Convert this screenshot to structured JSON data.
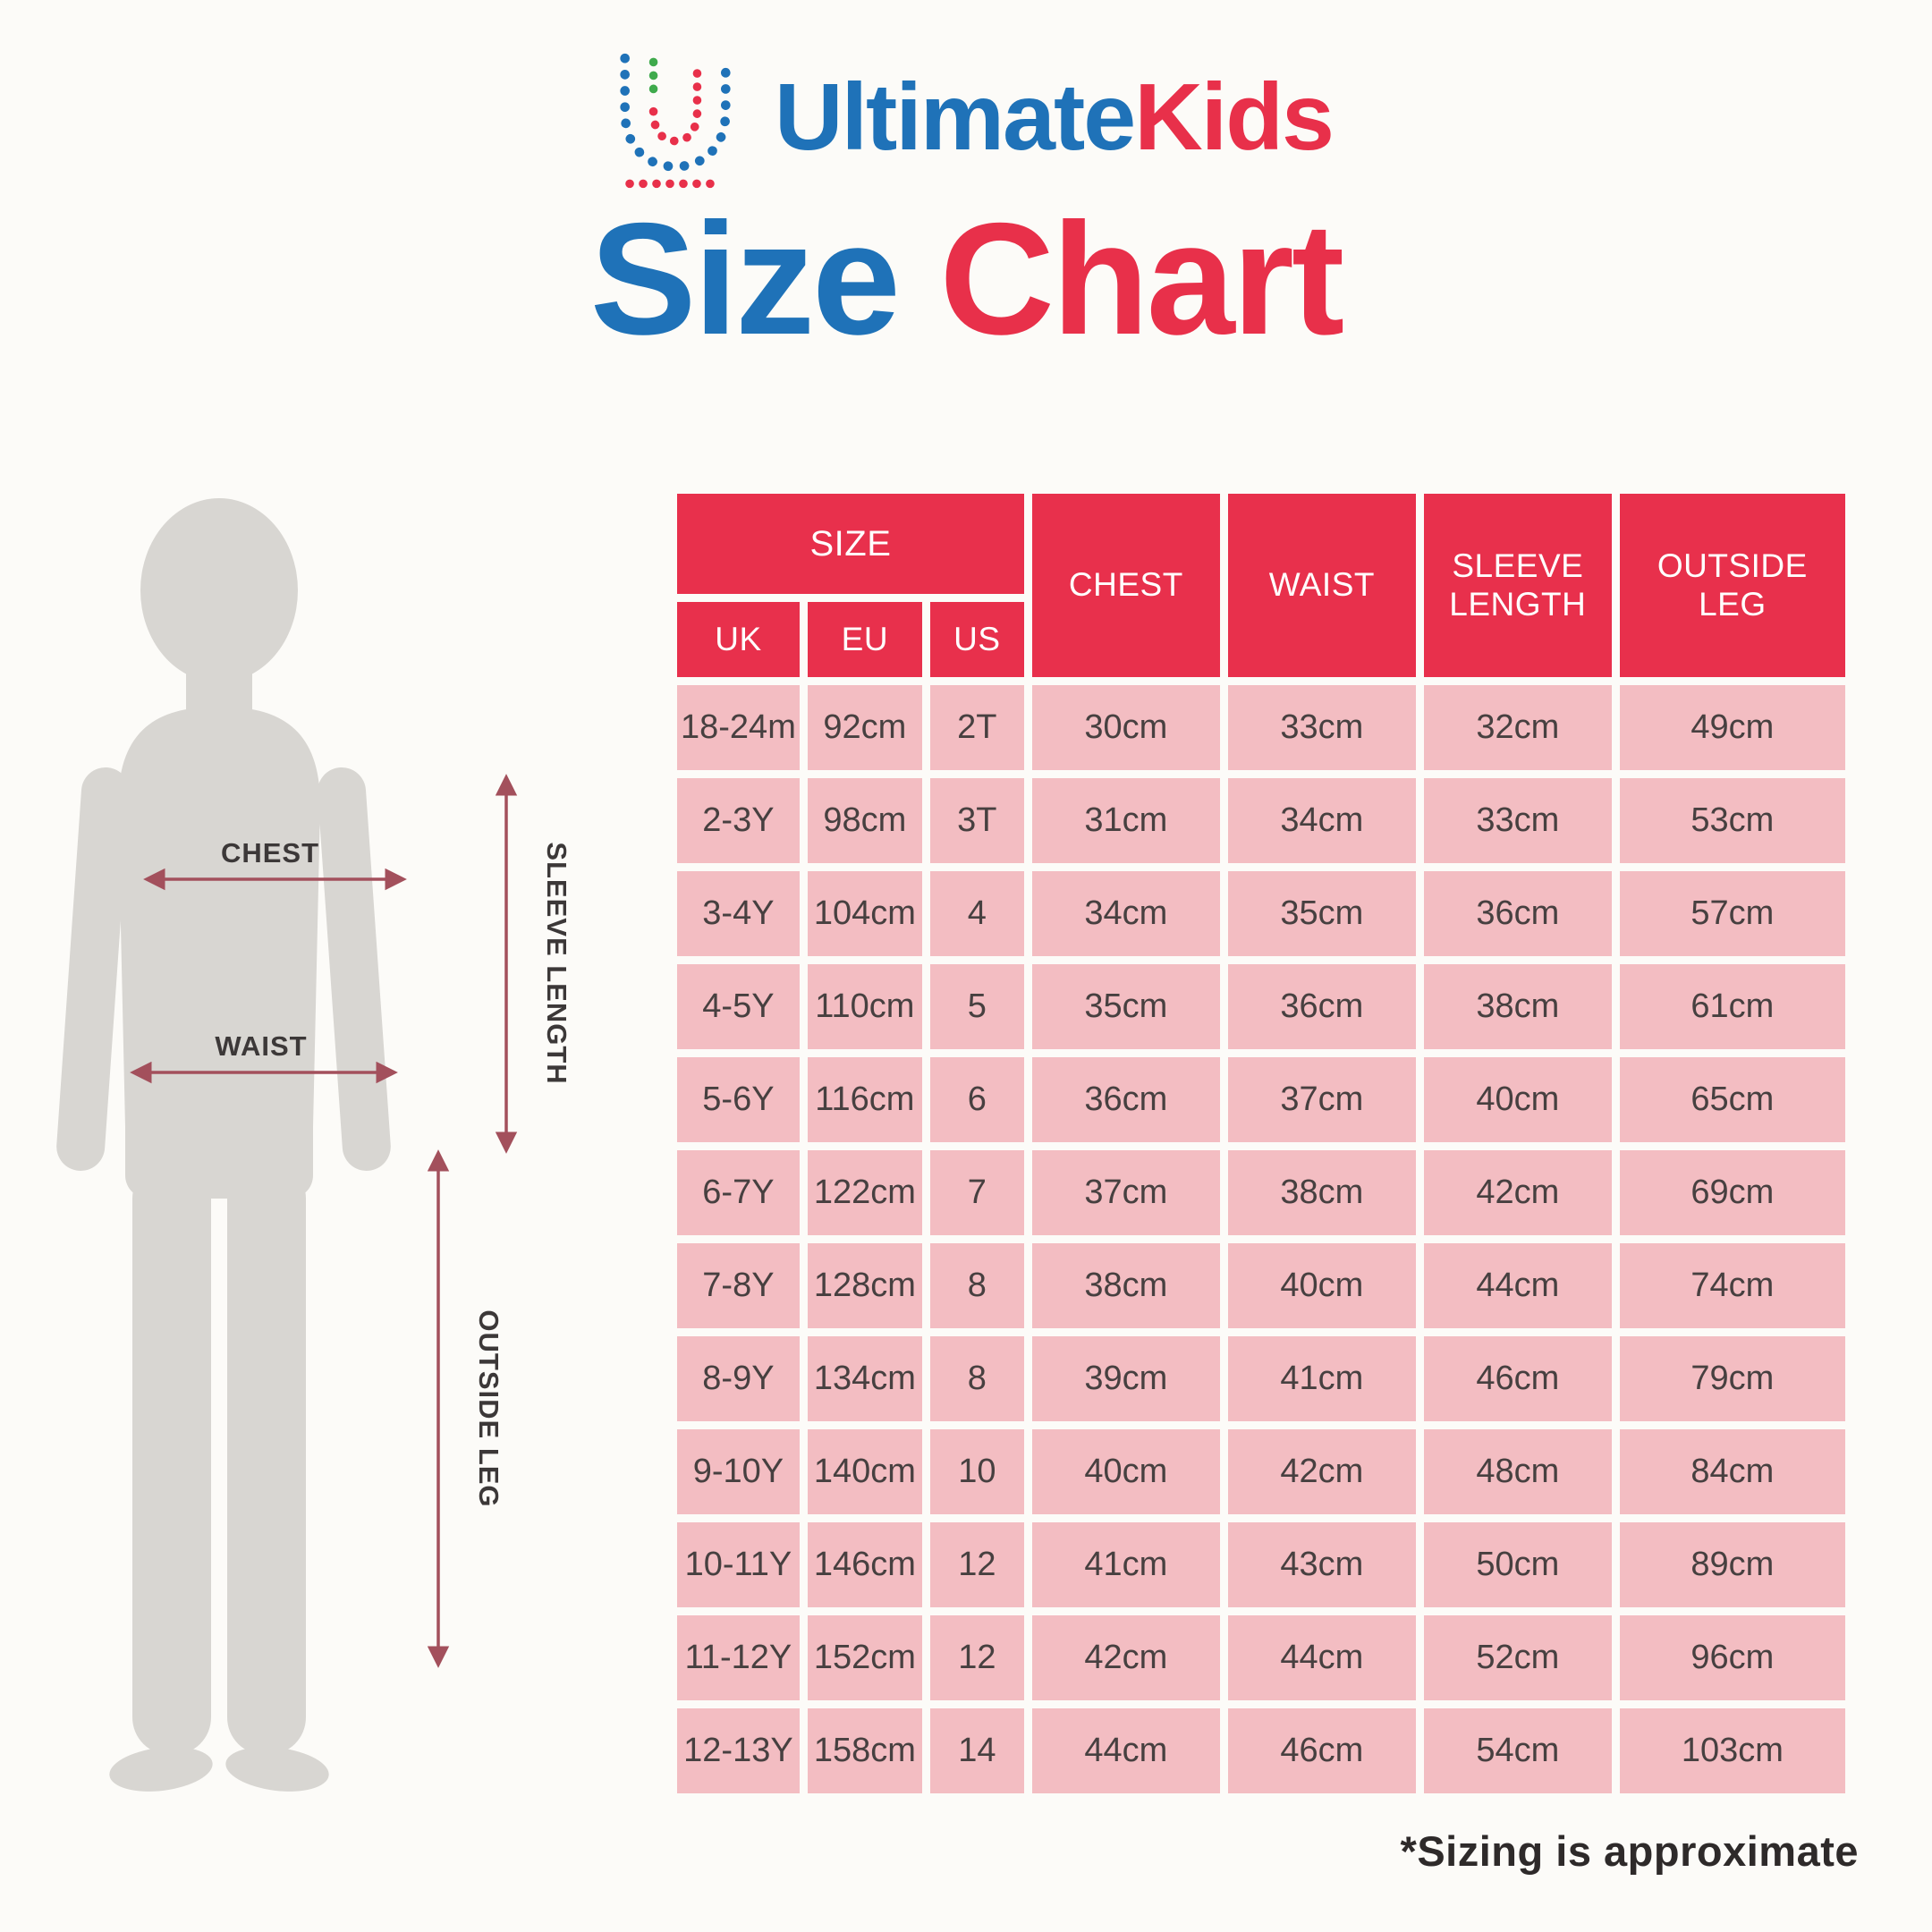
{
  "brand": {
    "part1": "Ultimate",
    "part2": "Kids"
  },
  "title": {
    "part1": "Size",
    "part2": "Chart"
  },
  "figure_labels": {
    "chest": "CHEST",
    "waist": "WAIST",
    "sleeve_length": "SLEEVE LENGTH",
    "outside_leg": "OUTSIDE LEG"
  },
  "footnote": "*Sizing is approximate",
  "colors": {
    "header_red": "#e8304c",
    "cell_pink": "#f3bdc2",
    "brand_blue": "#1f72b8",
    "brand_red": "#e8304a",
    "logo_green": "#3faa4c",
    "silhouette_grey": "#d8d6d2",
    "arrow_maroon": "#a3505c",
    "background": "#fcfbf8",
    "cell_text": "#474040",
    "header_text": "#ffffff"
  },
  "chart_data": {
    "type": "table",
    "title": "UltimateKids Size Chart",
    "column_group": {
      "label": "SIZE",
      "columns": [
        "UK",
        "EU",
        "US"
      ]
    },
    "columns": [
      "UK",
      "EU",
      "US",
      "CHEST",
      "WAIST",
      "SLEEVE LENGTH",
      "OUTSIDE LEG"
    ],
    "rows": [
      [
        "18-24m",
        "92cm",
        "2T",
        "30cm",
        "33cm",
        "32cm",
        "49cm"
      ],
      [
        "2-3Y",
        "98cm",
        "3T",
        "31cm",
        "34cm",
        "33cm",
        "53cm"
      ],
      [
        "3-4Y",
        "104cm",
        "4",
        "34cm",
        "35cm",
        "36cm",
        "57cm"
      ],
      [
        "4-5Y",
        "110cm",
        "5",
        "35cm",
        "36cm",
        "38cm",
        "61cm"
      ],
      [
        "5-6Y",
        "116cm",
        "6",
        "36cm",
        "37cm",
        "40cm",
        "65cm"
      ],
      [
        "6-7Y",
        "122cm",
        "7",
        "37cm",
        "38cm",
        "42cm",
        "69cm"
      ],
      [
        "7-8Y",
        "128cm",
        "8",
        "38cm",
        "40cm",
        "44cm",
        "74cm"
      ],
      [
        "8-9Y",
        "134cm",
        "8",
        "39cm",
        "41cm",
        "46cm",
        "79cm"
      ],
      [
        "9-10Y",
        "140cm",
        "10",
        "40cm",
        "42cm",
        "48cm",
        "84cm"
      ],
      [
        "10-11Y",
        "146cm",
        "12",
        "41cm",
        "43cm",
        "50cm",
        "89cm"
      ],
      [
        "11-12Y",
        "152cm",
        "12",
        "42cm",
        "44cm",
        "52cm",
        "96cm"
      ],
      [
        "12-13Y",
        "158cm",
        "14",
        "44cm",
        "46cm",
        "54cm",
        "103cm"
      ]
    ]
  }
}
